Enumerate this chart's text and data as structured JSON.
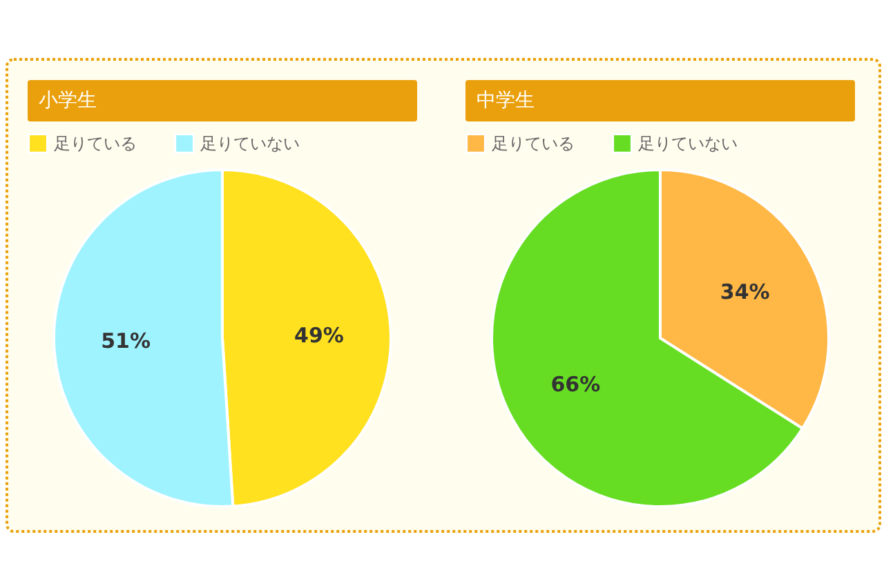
{
  "chart_data": [
    {
      "type": "pie",
      "title": "小学生",
      "categories": [
        "足りている",
        "足りていない"
      ],
      "values": [
        49,
        51
      ],
      "colors": [
        "#ffe120",
        "#9ff3ff"
      ],
      "value_labels": [
        "49%",
        "51%"
      ],
      "legend": "top"
    },
    {
      "type": "pie",
      "title": "中学生",
      "categories": [
        "足りている",
        "足りていない"
      ],
      "values": [
        34,
        66
      ],
      "colors": [
        "#ffb845",
        "#66dd22"
      ],
      "value_labels": [
        "34%",
        "66%"
      ],
      "legend": "top"
    }
  ]
}
